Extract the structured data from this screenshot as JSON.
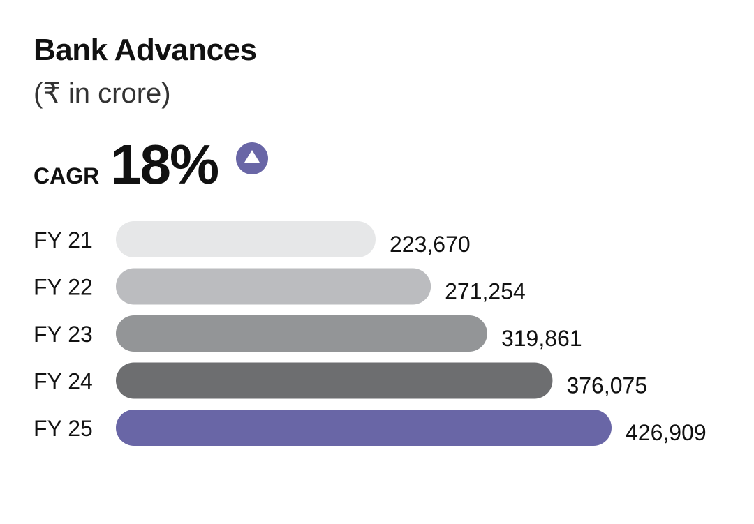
{
  "header": {
    "title": "Bank Advances",
    "subtitle": "(₹ in crore)",
    "cagr_label": "CAGR",
    "cagr_value": "18%",
    "trend_icon": "triangle-up-circle-icon"
  },
  "colors": {
    "accent": "#6966A6",
    "bar_shades": [
      "#E6E7E8",
      "#BBBCBF",
      "#939597",
      "#6D6E70",
      "#6966A6"
    ]
  },
  "chart_data": {
    "type": "bar",
    "orientation": "horizontal",
    "title": "Bank Advances",
    "subtitle": "(₹ in crore)",
    "categories": [
      "FY 21",
      "FY 22",
      "FY 23",
      "FY 24",
      "FY 25"
    ],
    "values": [
      223670,
      271254,
      319861,
      376075,
      426909
    ],
    "value_labels": [
      "223,670",
      "271,254",
      "319,861",
      "376,075",
      "426,909"
    ],
    "xlabel": "",
    "ylabel": "",
    "grid": false,
    "legend": "none"
  }
}
